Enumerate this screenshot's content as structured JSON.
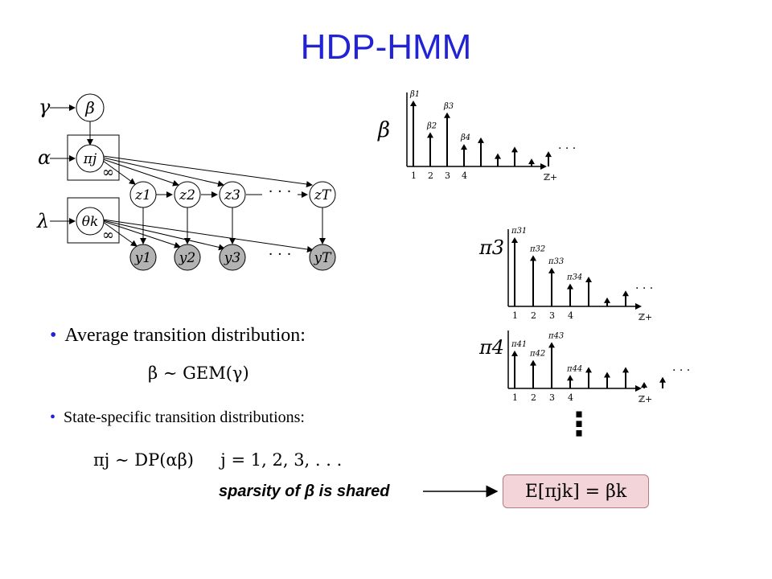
{
  "title": "HDP-HMM",
  "graphical_model": {
    "hyper_gamma": "γ",
    "hyper_alpha": "α",
    "hyper_lambda": "λ",
    "beta_node": "β",
    "pi_node": "πj",
    "theta_node": "θk",
    "plate_inf": "∞",
    "states": [
      "z1",
      "z2",
      "z3",
      "zT"
    ],
    "observations": [
      "y1",
      "y2",
      "y3",
      "yT"
    ],
    "ellipsis": "· · ·"
  },
  "stem_plots": [
    {
      "label": "β",
      "xticks": [
        "1",
        "2",
        "3",
        "4"
      ],
      "axis_label": "ℤ+",
      "stem_labels": [
        "β1",
        "β2",
        "β3",
        "β4"
      ],
      "values": [
        1.0,
        0.52,
        0.82,
        0.34,
        0.44,
        0.2,
        0.3,
        0.12,
        0.23
      ],
      "ellipsis": "· · ·"
    },
    {
      "label": "π3",
      "xticks": [
        "1",
        "2",
        "3",
        "4"
      ],
      "axis_label": "ℤ+",
      "stem_labels": [
        "π31",
        "π32",
        "π33",
        "π34"
      ],
      "values": [
        1.0,
        0.74,
        0.56,
        0.33,
        0.43,
        0.13,
        0.23
      ],
      "ellipsis": "· · ·"
    },
    {
      "label": "π4",
      "xticks": [
        "1",
        "2",
        "3",
        "4"
      ],
      "axis_label": "ℤ+",
      "stem_labels": [
        "π41",
        "π42",
        "π43",
        "π44"
      ],
      "values": [
        0.76,
        0.57,
        0.93,
        0.27,
        0.43,
        0.33,
        0.43,
        0.13,
        0.23
      ],
      "ellipsis": "· · ·"
    }
  ],
  "bullets": {
    "first": "Average transition distribution:",
    "first_formula": "β ∼ GEM(γ)",
    "second": "State-specific transition distributions:",
    "second_formula": "πj ∼ DP(αβ)     j = 1, 2, 3, . . ."
  },
  "vertical_dots": "⋮",
  "sparsity_note": "sparsity of β is shared",
  "expectation_box": "E[πjk] = βk",
  "colors": {
    "title": "#2323d6",
    "box_fill": "#f3d4d8",
    "observed_node": "#b3b3b3"
  }
}
